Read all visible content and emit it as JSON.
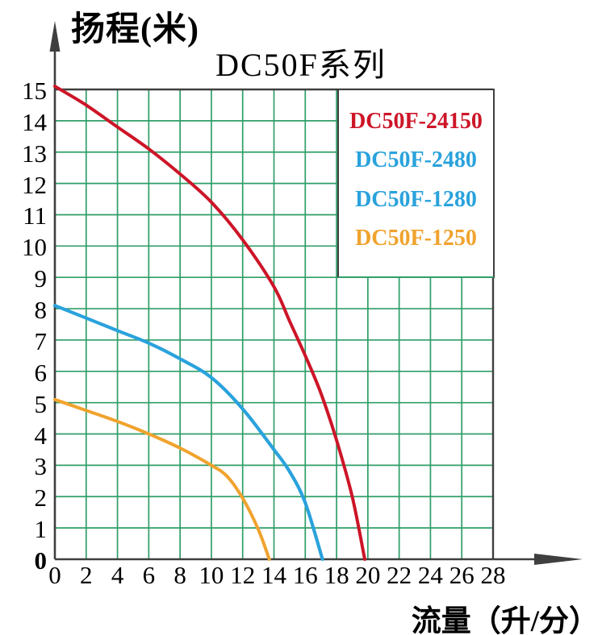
{
  "colors": {
    "grid": "#2f9e68",
    "axis": "#3f3f3f",
    "red": "#cd1528",
    "blue": "#2aa2dc",
    "orange": "#f0a32e",
    "background": "#ffffff",
    "text": "#000000"
  },
  "legend": {
    "items": [
      {
        "label": "DC50F-24150",
        "color": "#cd1528"
      },
      {
        "label": "DC50F-2480",
        "color": "#2aa2dc"
      },
      {
        "label": "DC50F-1280",
        "color": "#2aa2dc"
      },
      {
        "label": "DC50F-1250",
        "color": "#f0a32e"
      }
    ]
  },
  "chart_data": {
    "type": "line",
    "title": "DC50F系列",
    "ylabel": "扬程(米)",
    "xlabel": "流量（升/分）",
    "xlim": [
      0,
      28
    ],
    "ylim": [
      0,
      15
    ],
    "x_ticks": [
      0,
      2,
      4,
      6,
      8,
      10,
      12,
      14,
      16,
      18,
      20,
      22,
      24,
      26,
      28
    ],
    "y_ticks": [
      0,
      1,
      2,
      3,
      4,
      5,
      6,
      7,
      8,
      9,
      10,
      11,
      12,
      13,
      14,
      15
    ],
    "grid": true,
    "legend_position": "top-right",
    "series": [
      {
        "name": "DC50F-24150",
        "color": "#cd1528",
        "points": [
          [
            0,
            15.1
          ],
          [
            2,
            14.5
          ],
          [
            4,
            13.8
          ],
          [
            6,
            13.1
          ],
          [
            8,
            12.3
          ],
          [
            10,
            11.4
          ],
          [
            12,
            10.2
          ],
          [
            14,
            8.7
          ],
          [
            15,
            7.6
          ],
          [
            16,
            6.5
          ],
          [
            17,
            5.3
          ],
          [
            18,
            3.8
          ],
          [
            19,
            2.0
          ],
          [
            19.8,
            0
          ]
        ]
      },
      {
        "name": "DC50F-2480",
        "color": "#2aa2dc",
        "points": [
          [
            0,
            8.1
          ],
          [
            2,
            7.7
          ],
          [
            4,
            7.3
          ],
          [
            6,
            6.9
          ],
          [
            8,
            6.4
          ],
          [
            10,
            5.8
          ],
          [
            12,
            4.8
          ],
          [
            14,
            3.5
          ],
          [
            15,
            2.8
          ],
          [
            16,
            1.8
          ],
          [
            17.1,
            0
          ]
        ]
      },
      {
        "name": "DC50F-1280",
        "color": "#2aa2dc",
        "points": [
          [
            0,
            8.1
          ],
          [
            2,
            7.7
          ],
          [
            4,
            7.3
          ],
          [
            6,
            6.9
          ],
          [
            8,
            6.4
          ],
          [
            10,
            5.8
          ],
          [
            12,
            4.8
          ],
          [
            14,
            3.5
          ],
          [
            15,
            2.8
          ],
          [
            16,
            1.8
          ],
          [
            17.1,
            0
          ]
        ]
      },
      {
        "name": "DC50F-1250",
        "color": "#f0a32e",
        "points": [
          [
            0,
            5.1
          ],
          [
            2,
            4.75
          ],
          [
            4,
            4.4
          ],
          [
            6,
            4.0
          ],
          [
            8,
            3.55
          ],
          [
            10,
            3.0
          ],
          [
            11,
            2.65
          ],
          [
            12,
            1.95
          ],
          [
            13,
            0.95
          ],
          [
            13.7,
            0
          ]
        ]
      }
    ]
  }
}
